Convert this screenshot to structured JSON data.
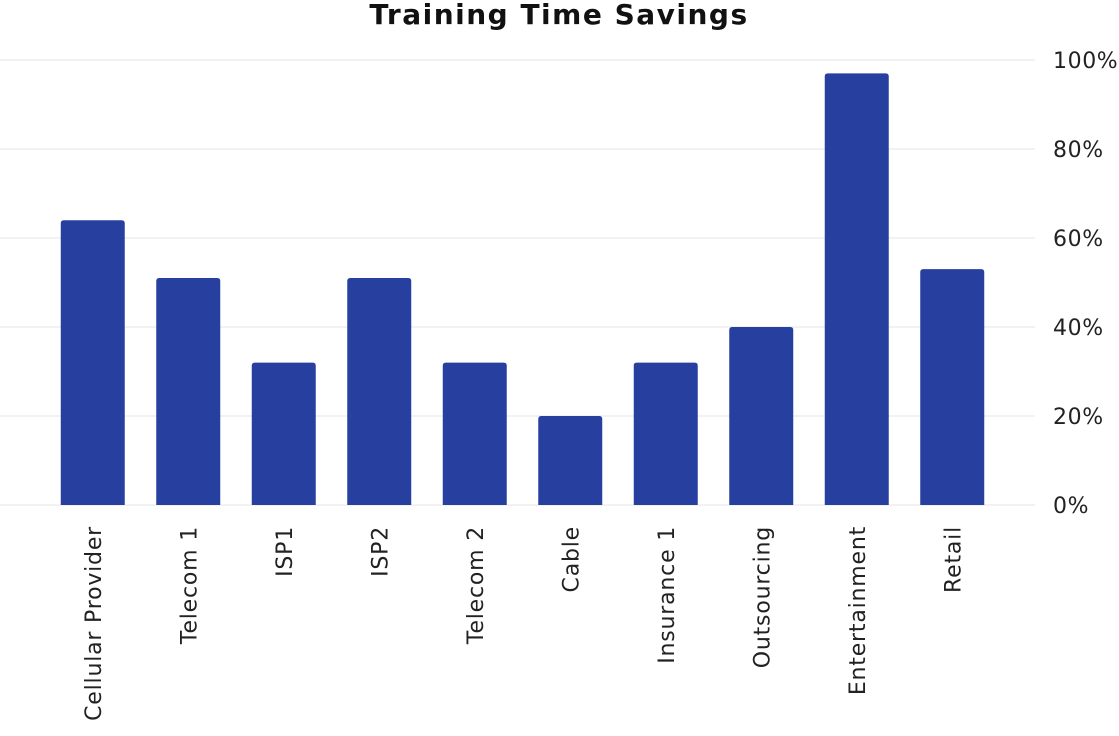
{
  "chart_data": {
    "type": "bar",
    "title": "Training Time Savings",
    "categories": [
      "Cellular Provider",
      "Telecom 1",
      "ISP1",
      "ISP2",
      "Telecom 2",
      "Cable",
      "Insurance 1",
      "Outsourcing",
      "Entertainment",
      "Retail"
    ],
    "values": [
      64,
      51,
      32,
      51,
      32,
      20,
      32,
      40,
      97,
      53
    ],
    "unit": "%",
    "xlabel": "",
    "ylabel": "",
    "ylim": [
      0,
      100
    ],
    "yticks": [
      0,
      20,
      40,
      60,
      80,
      100
    ],
    "ytick_labels": [
      "0%",
      "20%",
      "40%",
      "60%",
      "80%",
      "100%"
    ],
    "y_axis_side": "right",
    "grid": true,
    "legend": false,
    "bar_color": "#27409f"
  }
}
